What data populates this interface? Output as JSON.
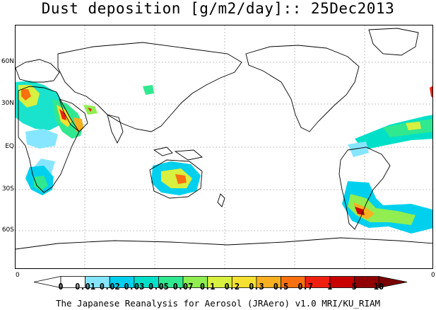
{
  "title": "Dust deposition [g/m2/day]:: 25Dec2013",
  "lat_labels": [
    "60N",
    "30N",
    "EQ",
    "30S",
    "60S"
  ],
  "corner_left": "0",
  "corner_right": "0",
  "colorbar": {
    "ticks": [
      "0",
      "0.01",
      "0.02",
      "0.03",
      "0.05",
      "0.07",
      "0.1",
      "0.2",
      "0.3",
      "0.5",
      "0.7",
      "1",
      "5",
      "10"
    ],
    "colors": [
      "#ffffff",
      "#86e6ff",
      "#00d0ee",
      "#00e0c8",
      "#30e890",
      "#90ee50",
      "#d8f040",
      "#f4e030",
      "#f8b020",
      "#f87010",
      "#f02010",
      "#c80000",
      "#900000"
    ]
  },
  "credit": "The Japanese Reanalysis for Aerosol (JRAero) v1.0 MRI/KU_RIAM"
}
